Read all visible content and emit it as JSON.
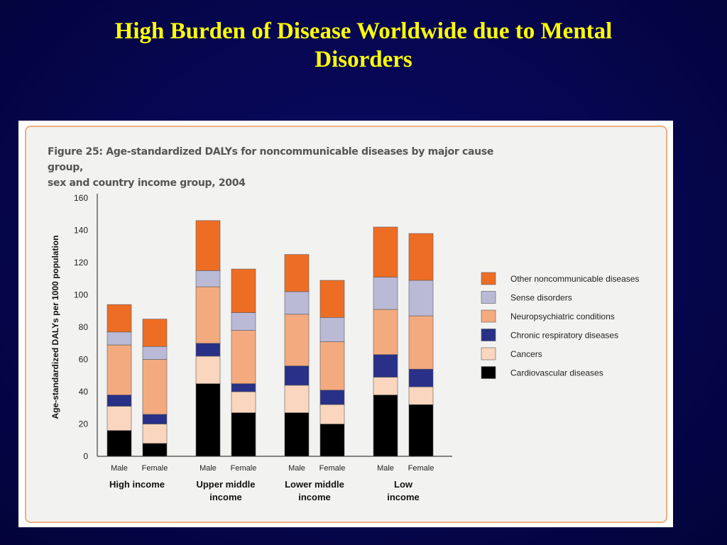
{
  "slide": {
    "title_line1": "High Burden of Disease Worldwide due to Mental",
    "title_line2": "Disorders"
  },
  "chart_data": {
    "type": "bar",
    "stacked": true,
    "title_line1": "Figure 25: Age-standardized DALYs for noncommunicable diseases by major cause group,",
    "title_line2": "sex and country income group, 2004",
    "ylabel": "Age-standardized DALYs per 1000 population",
    "xlabel": "",
    "ylim": [
      0,
      160
    ],
    "yticks": [
      0,
      20,
      40,
      60,
      80,
      100,
      120,
      140,
      160
    ],
    "grid": false,
    "legend_position": "right",
    "groups": [
      {
        "label_lines": [
          "High income"
        ],
        "categories": [
          "Male",
          "Female"
        ]
      },
      {
        "label_lines": [
          "Upper middle",
          "income"
        ],
        "categories": [
          "Male",
          "Female"
        ]
      },
      {
        "label_lines": [
          "Lower middle",
          "income"
        ],
        "categories": [
          "Male",
          "Female"
        ]
      },
      {
        "label_lines": [
          "Low",
          "income"
        ],
        "categories": [
          "Male",
          "Female"
        ]
      }
    ],
    "series": [
      {
        "name": "Cardiovascular diseases",
        "color": "#000000",
        "values": [
          16,
          8,
          45,
          27,
          27,
          20,
          38,
          32
        ]
      },
      {
        "name": "Cancers",
        "color": "#f9d6bd",
        "values": [
          15,
          12,
          17,
          13,
          17,
          12,
          11,
          11
        ]
      },
      {
        "name": "Chronic respiratory diseases",
        "color": "#283087",
        "values": [
          7,
          6,
          8,
          5,
          12,
          9,
          14,
          11
        ]
      },
      {
        "name": "Neuropsychiatric conditions",
        "color": "#f4aa7f",
        "values": [
          31,
          34,
          35,
          33,
          32,
          30,
          28,
          33
        ]
      },
      {
        "name": "Sense disorders",
        "color": "#babad7",
        "values": [
          8,
          8,
          10,
          11,
          14,
          15,
          20,
          22
        ]
      },
      {
        "name": "Other noncommunicable diseases",
        "color": "#ee6d24",
        "values": [
          17,
          17,
          31,
          27,
          23,
          23,
          31,
          29
        ]
      }
    ]
  }
}
